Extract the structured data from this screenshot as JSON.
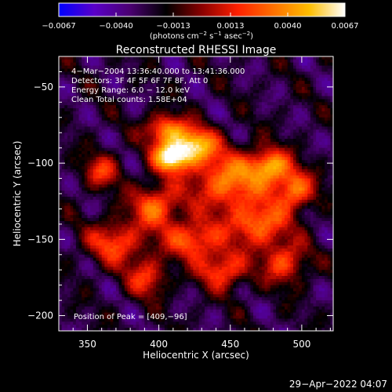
{
  "chart_data": {
    "type": "heatmap",
    "title": "Reconstructed RHESSI Image",
    "xlabel": "Heliocentric X (arcsec)",
    "ylabel": "Heliocentric Y (arcsec)",
    "xlim": [
      330,
      522
    ],
    "ylim": [
      -210,
      -30
    ],
    "x_ticks": [
      350,
      400,
      450,
      500
    ],
    "y_ticks": [
      -50,
      -100,
      -150,
      -200
    ],
    "colorbar": {
      "min": -0.0067,
      "max": 0.0067,
      "ticks": [
        "−0.0067",
        "−0.0040",
        "−0.0013",
        "0.0013",
        "0.0040",
        "0.0067"
      ],
      "unit_base": "(photons cm",
      "unit_exp1": "−2",
      "unit_mid": " s",
      "unit_exp2": "−1",
      "unit_mid2": " asec",
      "unit_exp3": "−2",
      "unit_end": ")",
      "colors": [
        "#0000ff",
        "#5a00c8",
        "#4a0070",
        "#000000",
        "#8a0000",
        "#ff2000",
        "#ff7000",
        "#ffbe00",
        "#ffffff"
      ]
    },
    "annotations": [
      " 4−Mar−2004 13:36:40.000 to 13:41:36.000",
      "Detectors: 3F 4F 5F 6F 7F 8F, Att 0",
      "Energy Range: 6.0 − 12.0 keV",
      "Clean    Total counts: 1.58E+04"
    ],
    "peak_label": "Position of Peak = [409,−96]",
    "peak": {
      "x": 409,
      "y": -96,
      "value": 0.0067
    },
    "sources": [
      {
        "x": 409,
        "y": -96,
        "value": 0.0067,
        "sx": 9,
        "sy": 7
      },
      {
        "x": 426,
        "y": -88,
        "value": 0.0046,
        "sx": 10,
        "sy": 8
      },
      {
        "x": 405,
        "y": -78,
        "value": 0.0038,
        "sx": 10,
        "sy": 7
      },
      {
        "x": 448,
        "y": -112,
        "value": 0.0036,
        "sx": 18,
        "sy": 14
      },
      {
        "x": 478,
        "y": -102,
        "value": 0.0041,
        "sx": 10,
        "sy": 8
      },
      {
        "x": 495,
        "y": -118,
        "value": 0.0033,
        "sx": 10,
        "sy": 9
      },
      {
        "x": 470,
        "y": -140,
        "value": 0.0032,
        "sx": 14,
        "sy": 10
      },
      {
        "x": 424,
        "y": -150,
        "value": 0.0029,
        "sx": 14,
        "sy": 9
      },
      {
        "x": 398,
        "y": -128,
        "value": 0.003,
        "sx": 12,
        "sy": 10
      },
      {
        "x": 370,
        "y": -152,
        "value": 0.0024,
        "sx": 14,
        "sy": 10
      },
      {
        "x": 445,
        "y": -170,
        "value": 0.0026,
        "sx": 12,
        "sy": 9
      },
      {
        "x": 488,
        "y": -165,
        "value": 0.0022,
        "sx": 11,
        "sy": 10
      },
      {
        "x": 392,
        "y": -175,
        "value": 0.0018,
        "sx": 10,
        "sy": 9
      },
      {
        "x": 360,
        "y": -105,
        "value": 0.0016,
        "sx": 9,
        "sy": 8
      }
    ],
    "background": -0.0025
  },
  "footer": {
    "timestamp": "29−Apr−2022 04:07"
  }
}
